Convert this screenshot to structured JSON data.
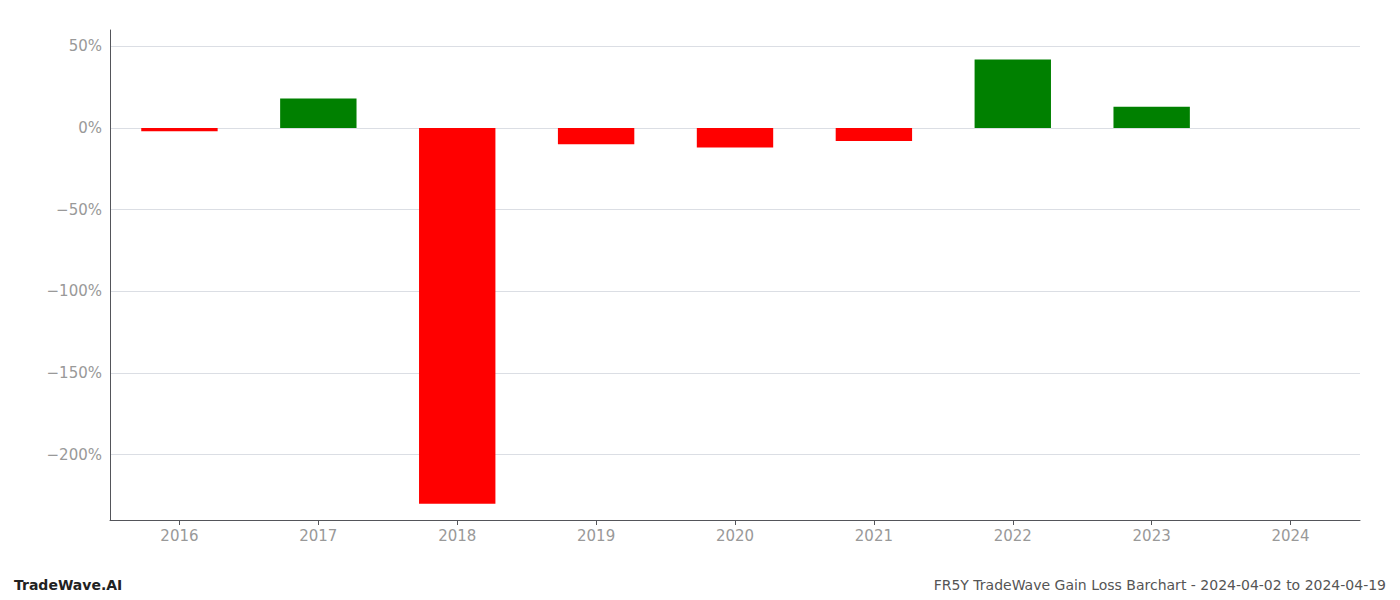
{
  "chart_data": {
    "type": "bar",
    "categories": [
      "2016",
      "2017",
      "2018",
      "2019",
      "2020",
      "2021",
      "2022",
      "2023",
      "2024"
    ],
    "values": [
      -2.0,
      18.0,
      -230.0,
      -10.0,
      -12.0,
      -8.0,
      42.0,
      13.0,
      null
    ],
    "colors": [
      "#ff0000",
      "#008000",
      "#ff0000",
      "#ff0000",
      "#ff0000",
      "#ff0000",
      "#008000",
      "#008000",
      null
    ],
    "ylim": [
      -240,
      60
    ],
    "yticks": [
      {
        "value": 50,
        "label": "50%"
      },
      {
        "value": 0,
        "label": "0%"
      },
      {
        "value": -50,
        "label": "−50%"
      },
      {
        "value": -100,
        "label": "−100%"
      },
      {
        "value": -150,
        "label": "−150%"
      },
      {
        "value": -200,
        "label": "−200%"
      }
    ],
    "grid": true,
    "annotations": [
      "TradeWave.AI",
      "FR5Y TradeWave Gain Loss Barchart - 2024-04-02 to 2024-04-19"
    ]
  }
}
